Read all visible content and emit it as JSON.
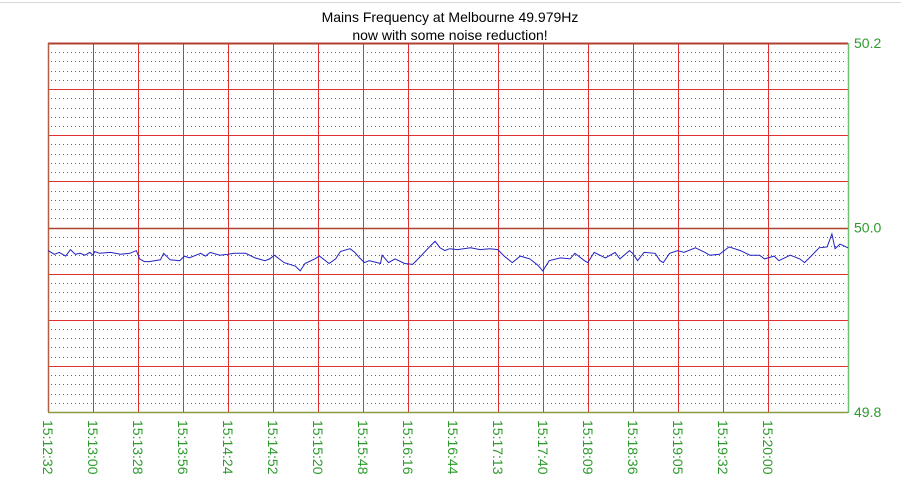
{
  "chart_data": {
    "type": "line",
    "title": "Mains Frequency at Melbourne 49.979Hz",
    "subtitle": "now with some noise reduction!",
    "xlabel": "",
    "ylabel": "",
    "ylim": [
      49.8,
      50.2
    ],
    "xlim": [
      "15:12:32",
      "15:20:50"
    ],
    "y_ticks": [
      "50.2",
      "50.0",
      "49.8"
    ],
    "y_tick_values": [
      50.2,
      50.0,
      49.8
    ],
    "y_major_grid_step": 0.05,
    "y_minor_grid_step": 0.01,
    "x_tick_labels": [
      "15:12:32",
      "15:13:00",
      "15:13:28",
      "15:13:56",
      "15:14:24",
      "15:14:52",
      "15:15:20",
      "15:15:48",
      "15:16:16",
      "15:16:44",
      "15:17:13",
      "15:17:40",
      "15:18:09",
      "15:18:36",
      "15:19:05",
      "15:19:32",
      "15:20:00"
    ],
    "grid": true,
    "legend": "none",
    "colors": {
      "line": "#2020c0",
      "grid_major": "#e03030",
      "grid_minor": "#c04040",
      "axis_labels": "#2e9a2e",
      "right_axis": "#70c070",
      "zero_line": "#b04030"
    },
    "series": [
      {
        "points": [
          [
            "15:12:32",
            49.975
          ],
          [
            "15:12:36",
            49.971
          ],
          [
            "15:12:39",
            49.973
          ],
          [
            "15:12:43",
            49.969
          ],
          [
            "15:12:46",
            49.976
          ],
          [
            "15:12:49",
            49.971
          ],
          [
            "15:12:52",
            49.972
          ],
          [
            "15:12:55",
            49.97
          ],
          [
            "15:12:58",
            49.973
          ],
          [
            "15:13:00",
            49.97
          ],
          [
            "15:13:01",
            49.974
          ],
          [
            "15:13:04",
            49.972
          ],
          [
            "15:13:11",
            49.973
          ],
          [
            "15:13:17",
            49.971
          ],
          [
            "15:13:23",
            49.972
          ],
          [
            "15:13:27",
            49.975
          ],
          [
            "15:13:29",
            49.966
          ],
          [
            "15:13:32",
            49.963
          ],
          [
            "15:13:35",
            49.963
          ],
          [
            "15:13:42",
            49.965
          ],
          [
            "15:13:44",
            49.972
          ],
          [
            "15:13:48",
            49.965
          ],
          [
            "15:13:54",
            49.964
          ],
          [
            "15:13:57",
            49.969
          ],
          [
            "15:14:00",
            49.967
          ],
          [
            "15:14:07",
            49.972
          ],
          [
            "15:14:10",
            49.969
          ],
          [
            "15:14:13",
            49.973
          ],
          [
            "15:14:19",
            49.97
          ],
          [
            "15:14:24",
            49.971
          ],
          [
            "15:14:28",
            49.972
          ],
          [
            "15:14:35",
            49.972
          ],
          [
            "15:14:41",
            49.967
          ],
          [
            "15:14:47",
            49.964
          ],
          [
            "15:14:50",
            49.966
          ],
          [
            "15:14:53",
            49.97
          ],
          [
            "15:14:59",
            49.962
          ],
          [
            "15:15:06",
            49.958
          ],
          [
            "15:15:09",
            49.953
          ],
          [
            "15:15:12",
            49.961
          ],
          [
            "15:15:18",
            49.966
          ],
          [
            "15:15:21",
            49.969
          ],
          [
            "15:15:27",
            49.961
          ],
          [
            "15:15:31",
            49.966
          ],
          [
            "15:15:34",
            49.974
          ],
          [
            "15:15:40",
            49.977
          ],
          [
            "15:15:43",
            49.973
          ],
          [
            "15:15:46",
            49.967
          ],
          [
            "15:15:49",
            49.962
          ],
          [
            "15:15:52",
            49.964
          ],
          [
            "15:15:59",
            49.961
          ],
          [
            "15:16:00",
            49.97
          ],
          [
            "15:16:04",
            49.962
          ],
          [
            "15:16:08",
            49.966
          ],
          [
            "15:16:14",
            49.961
          ],
          [
            "15:16:19",
            49.96
          ],
          [
            "15:16:23",
            49.967
          ],
          [
            "15:16:30",
            49.98
          ],
          [
            "15:16:33",
            49.985
          ],
          [
            "15:16:36",
            49.978
          ],
          [
            "15:16:39",
            49.975
          ],
          [
            "15:16:42",
            49.977
          ],
          [
            "15:16:47",
            49.976
          ],
          [
            "15:16:55",
            49.978
          ],
          [
            "15:17:01",
            49.976
          ],
          [
            "15:17:07",
            49.977
          ],
          [
            "15:17:12",
            49.976
          ],
          [
            "15:17:16",
            49.969
          ],
          [
            "15:17:21",
            49.962
          ],
          [
            "15:17:26",
            49.969
          ],
          [
            "15:17:32",
            49.966
          ],
          [
            "15:17:37",
            49.959
          ],
          [
            "15:17:40",
            49.953
          ],
          [
            "15:17:44",
            49.964
          ],
          [
            "15:17:51",
            49.967
          ],
          [
            "15:17:57",
            49.966
          ],
          [
            "15:18:00",
            49.972
          ],
          [
            "15:18:06",
            49.964
          ],
          [
            "15:18:08",
            49.962
          ],
          [
            "15:18:12",
            49.973
          ],
          [
            "15:18:19",
            49.967
          ],
          [
            "15:18:25",
            49.973
          ],
          [
            "15:18:28",
            49.966
          ],
          [
            "15:18:34",
            49.975
          ],
          [
            "15:18:36",
            49.972
          ],
          [
            "15:18:39",
            49.964
          ],
          [
            "15:18:43",
            49.973
          ],
          [
            "15:18:50",
            49.972
          ],
          [
            "15:18:53",
            49.964
          ],
          [
            "15:18:55",
            49.962
          ],
          [
            "15:18:59",
            49.972
          ],
          [
            "15:19:04",
            49.975
          ],
          [
            "15:19:08",
            49.973
          ],
          [
            "15:19:15",
            49.978
          ],
          [
            "15:19:21",
            49.973
          ],
          [
            "15:19:24",
            49.97
          ],
          [
            "15:19:30",
            49.971
          ],
          [
            "15:19:36",
            49.979
          ],
          [
            "15:19:43",
            49.975
          ],
          [
            "15:19:49",
            49.97
          ],
          [
            "15:19:55",
            49.97
          ],
          [
            "15:19:58",
            49.966
          ],
          [
            "15:20:04",
            49.969
          ],
          [
            "15:20:07",
            49.964
          ],
          [
            "15:20:14",
            49.97
          ],
          [
            "15:20:20",
            49.966
          ],
          [
            "15:20:23",
            49.962
          ],
          [
            "15:20:26",
            49.967
          ],
          [
            "15:20:32",
            49.978
          ],
          [
            "15:20:37",
            49.979
          ],
          [
            "15:20:40",
            49.993
          ],
          [
            "15:20:42",
            49.977
          ],
          [
            "15:20:45",
            49.982
          ],
          [
            "15:20:50",
            49.978
          ]
        ]
      }
    ]
  }
}
